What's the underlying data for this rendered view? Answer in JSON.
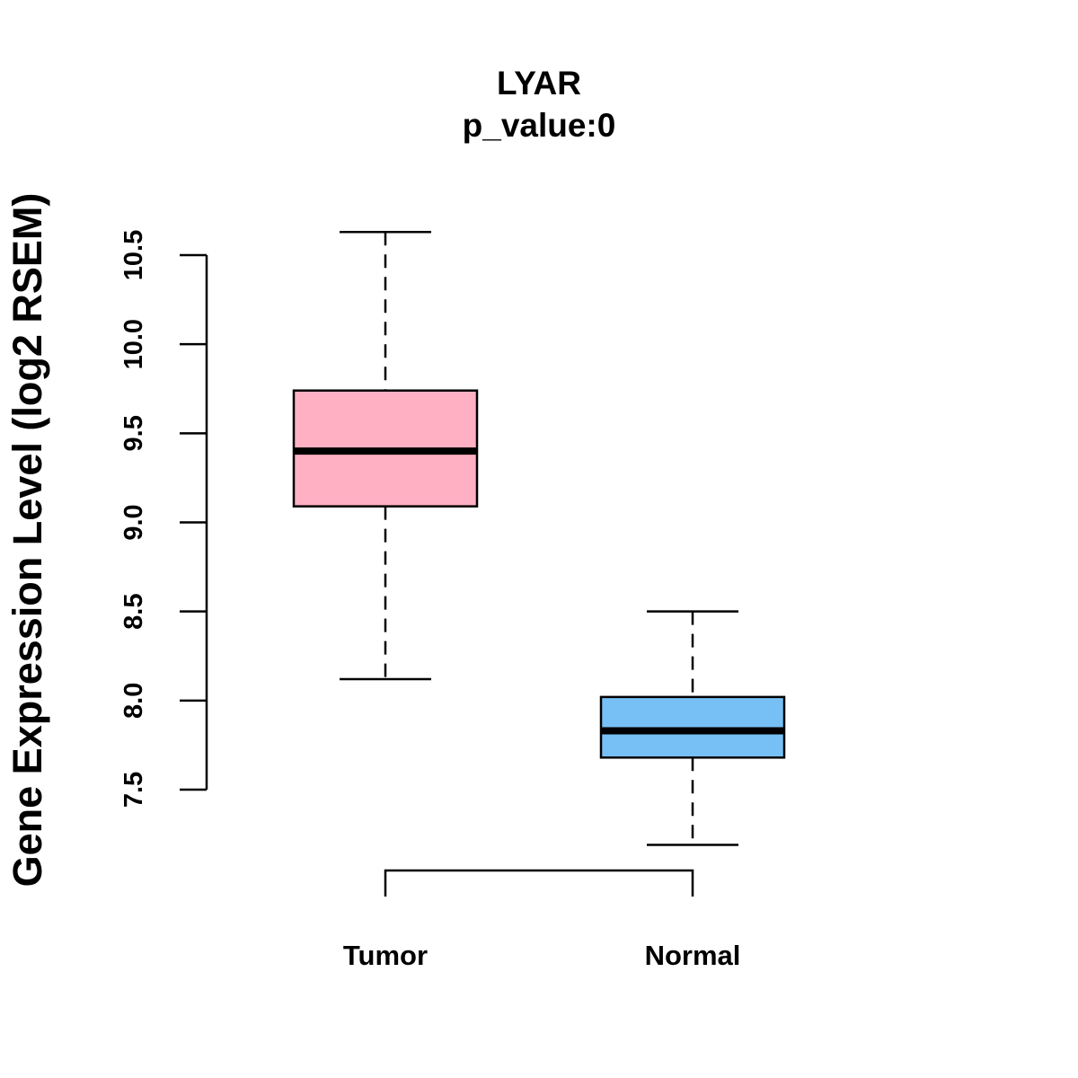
{
  "chart_data": {
    "type": "box",
    "title": "LYAR",
    "subtitle": "p_value:0",
    "xlabel": "",
    "ylabel": "Gene Expression Level (log2 RSEM)",
    "ylim": [
      7.5,
      10.5
    ],
    "yticks": [
      7.5,
      8.0,
      8.5,
      9.0,
      9.5,
      10.0,
      10.5
    ],
    "ytick_labels": [
      "7.5",
      "8.0",
      "8.5",
      "9.0",
      "9.5",
      "10.0",
      "10.5"
    ],
    "categories": [
      "Tumor",
      "Normal"
    ],
    "series": [
      {
        "name": "Tumor",
        "whisker_low": 8.12,
        "q1": 9.09,
        "median": 9.4,
        "q3": 9.74,
        "whisker_high": 10.63,
        "color": "#FFB0C3"
      },
      {
        "name": "Normal",
        "whisker_low": 7.19,
        "q1": 7.68,
        "median": 7.83,
        "q3": 8.02,
        "whisker_high": 8.5,
        "color": "#77C0F6"
      }
    ],
    "comparison_bracket": [
      "Tumor",
      "Normal"
    ],
    "grid": false,
    "legend": "none"
  }
}
